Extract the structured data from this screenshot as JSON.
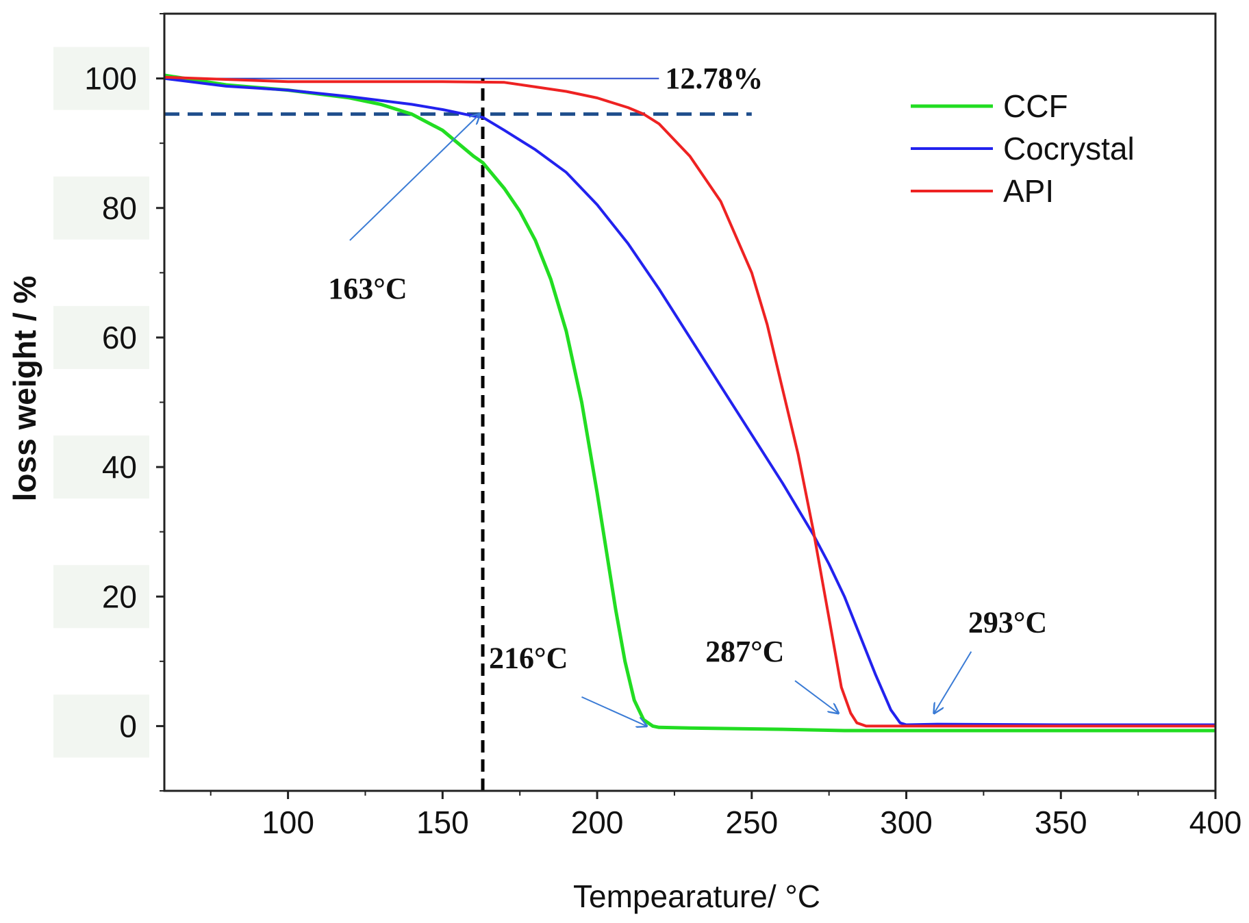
{
  "chart_data": {
    "type": "line",
    "title": "",
    "xlabel": "Tempearature/ °C",
    "ylabel": "loss weight / %",
    "xlim": [
      60,
      400
    ],
    "ylim": [
      -10,
      110
    ],
    "x_ticks": [
      100,
      150,
      200,
      250,
      300,
      350,
      400
    ],
    "y_ticks": [
      0,
      20,
      40,
      60,
      80,
      100
    ],
    "legend_position": "top-right",
    "series": [
      {
        "name": "CCF",
        "color": "#22dd22",
        "x": [
          60,
          80,
          100,
          120,
          130,
          140,
          150,
          155,
          160,
          163,
          170,
          175,
          180,
          185,
          190,
          195,
          200,
          203,
          206,
          209,
          212,
          215,
          218,
          220,
          230,
          260,
          280,
          300,
          350,
          400
        ],
        "y": [
          100.5,
          99,
          98.2,
          97,
          96,
          94.5,
          92,
          90,
          88,
          87,
          83,
          79.5,
          75,
          69,
          61,
          50,
          36,
          27,
          18,
          10,
          4,
          1,
          0,
          -0.2,
          -0.3,
          -0.5,
          -0.7,
          -0.7,
          -0.7,
          -0.7
        ]
      },
      {
        "name": "Cocrystal",
        "color": "#2222ee",
        "x": [
          60,
          80,
          100,
          120,
          140,
          150,
          160,
          163,
          170,
          180,
          190,
          200,
          210,
          220,
          230,
          240,
          250,
          260,
          270,
          275,
          280,
          285,
          290,
          295,
          298,
          300,
          310,
          350,
          400
        ],
        "y": [
          100,
          98.8,
          98.2,
          97.2,
          96,
          95.2,
          94.2,
          94,
          92,
          89,
          85.5,
          80.5,
          74.5,
          67.5,
          60,
          52.5,
          45,
          37.5,
          29.5,
          25,
          20,
          14,
          8,
          2.5,
          0.5,
          0.2,
          0.3,
          0.2,
          0.2
        ]
      },
      {
        "name": "API",
        "color": "#ee2222",
        "x": [
          60,
          100,
          150,
          170,
          180,
          190,
          200,
          210,
          215,
          220,
          230,
          240,
          250,
          255,
          260,
          265,
          270,
          273,
          276,
          279,
          282,
          284,
          287,
          290,
          300,
          400
        ],
        "y": [
          100.2,
          99.5,
          99.5,
          99.4,
          98.7,
          98,
          97,
          95.5,
          94.5,
          93,
          88,
          81,
          70,
          62,
          52,
          42,
          30,
          22,
          14,
          6,
          2,
          0.5,
          0,
          0,
          0,
          0
        ]
      }
    ],
    "reference_lines": [
      {
        "kind": "horizontal_solid",
        "y": 100,
        "x_from": 60,
        "x_to": 220,
        "color": "#2244cc"
      },
      {
        "kind": "horizontal_dashed",
        "y": 94.5,
        "x_from": 60,
        "x_to": 250,
        "color": "#1f4e8c"
      },
      {
        "kind": "vertical_dashed",
        "x": 163,
        "color": "#000000"
      }
    ],
    "annotations": [
      {
        "text": "12.78%",
        "x": 222,
        "y": 98.5
      },
      {
        "text": "163°C",
        "x": 113,
        "y": 66,
        "arrow_from": [
          120,
          75
        ],
        "arrow_to": [
          162,
          94.5
        ]
      },
      {
        "text": "216°C",
        "x": 165,
        "y": 9,
        "arrow_from": [
          195,
          4.5
        ],
        "arrow_to": [
          216,
          0
        ]
      },
      {
        "text": "287°C",
        "x": 235,
        "y": 10,
        "arrow_from": [
          264,
          7
        ],
        "arrow_to": [
          278,
          2
        ]
      },
      {
        "text": "293°C",
        "x": 320,
        "y": 14.5,
        "arrow_from": [
          321,
          11.5
        ],
        "arrow_to": [
          309,
          2
        ]
      }
    ]
  }
}
